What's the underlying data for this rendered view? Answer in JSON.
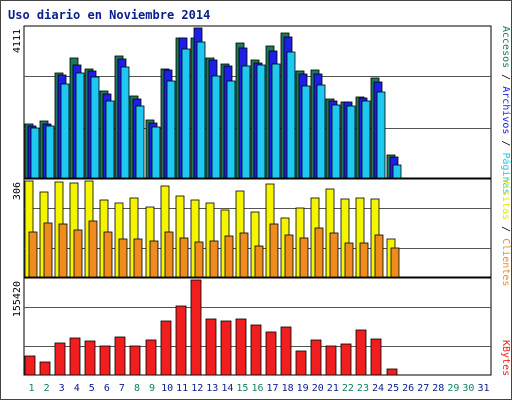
{
  "chart_data": [
    {
      "type": "bar",
      "title": "Uso diario en Noviembre 2014",
      "categories": [
        "1",
        "2",
        "3",
        "4",
        "5",
        "6",
        "7",
        "8",
        "9",
        "10",
        "11",
        "12",
        "13",
        "14",
        "15",
        "16",
        "17",
        "18",
        "19",
        "20",
        "21",
        "22",
        "23",
        "24",
        "25",
        "26",
        "27",
        "28",
        "29",
        "30",
        "31"
      ],
      "weekend_days": [
        "1",
        "2",
        "8",
        "9",
        "15",
        "16",
        "22",
        "23",
        "29",
        "30"
      ],
      "ymax_label": "4111",
      "right_labels": [
        "Páginas",
        "Archivos",
        "Accesos"
      ],
      "series": [
        {
          "name": "Accesos",
          "color": "#1c7a5a",
          "values": [
            1480,
            1560,
            2880,
            3280,
            2990,
            2380,
            3340,
            2240,
            1590,
            2980,
            3840,
            3850,
            3290,
            3120,
            3690,
            3240,
            3610,
            3980,
            2920,
            2950,
            2160,
            2090,
            2230,
            2740,
            620,
            0,
            0,
            0,
            0,
            0,
            0
          ]
        },
        {
          "name": "Archivos",
          "color": "#1e1ee6",
          "values": [
            1430,
            1480,
            2830,
            3090,
            2940,
            2300,
            3260,
            2170,
            1520,
            2950,
            3830,
            4111,
            3230,
            3070,
            3560,
            3150,
            3470,
            3870,
            2840,
            2850,
            2100,
            2070,
            2190,
            2620,
            580,
            0,
            0,
            0,
            0,
            0,
            0
          ]
        },
        {
          "name": "Páginas",
          "color": "#1ec8f0",
          "values": [
            1380,
            1430,
            2580,
            2880,
            2760,
            2120,
            3040,
            1970,
            1410,
            2650,
            3540,
            3720,
            2800,
            2650,
            3080,
            3110,
            3120,
            3460,
            2520,
            2550,
            1990,
            1980,
            2100,
            2370,
            360,
            0,
            0,
            0,
            0,
            0,
            0
          ]
        }
      ]
    },
    {
      "type": "bar",
      "categories": [
        "1",
        "2",
        "3",
        "4",
        "5",
        "6",
        "7",
        "8",
        "9",
        "10",
        "11",
        "12",
        "13",
        "14",
        "15",
        "16",
        "17",
        "18",
        "19",
        "20",
        "21",
        "22",
        "23",
        "24",
        "25",
        "26",
        "27",
        "28",
        "29",
        "30",
        "31"
      ],
      "ymax_label": "306",
      "right_labels": [
        "Clientes",
        "Visitas"
      ],
      "series": [
        {
          "name": "Visitas",
          "color": "#f5f500",
          "values": [
            306,
            270,
            303,
            300,
            306,
            245,
            237,
            253,
            223,
            291,
            259,
            245,
            237,
            215,
            274,
            208,
            296,
            187,
            219,
            253,
            280,
            250,
            251,
            250,
            120,
            0,
            0,
            0,
            0,
            0,
            0
          ]
        },
        {
          "name": "Clientes",
          "color": "#f08c1e",
          "values": [
            142,
            171,
            168,
            150,
            178,
            142,
            122,
            120,
            114,
            142,
            125,
            110,
            114,
            130,
            140,
            100,
            170,
            134,
            125,
            155,
            140,
            108,
            108,
            135,
            92,
            0,
            0,
            0,
            0,
            0,
            0
          ]
        }
      ]
    },
    {
      "type": "bar",
      "categories": [
        "1",
        "2",
        "3",
        "4",
        "5",
        "6",
        "7",
        "8",
        "9",
        "10",
        "11",
        "12",
        "13",
        "14",
        "15",
        "16",
        "17",
        "18",
        "19",
        "20",
        "21",
        "22",
        "23",
        "24",
        "25",
        "26",
        "27",
        "28",
        "29",
        "30",
        "31"
      ],
      "ymax_label": "155420",
      "right_labels": [
        "KBytes"
      ],
      "series": [
        {
          "name": "KBytes",
          "color": "#f01e1e",
          "values": [
            31000,
            22000,
            53000,
            61000,
            56000,
            48000,
            62000,
            48000,
            58000,
            88000,
            113000,
            155420,
            92000,
            88000,
            91000,
            81000,
            70000,
            79000,
            40000,
            57000,
            47000,
            51000,
            73000,
            59000,
            9000,
            0,
            0,
            0,
            0,
            0,
            0
          ]
        }
      ]
    }
  ],
  "colors": {
    "title": "#0a1e8c",
    "weekday_label": "#0a1e8c",
    "weekend_label": "#118066",
    "gridline": "#555555"
  }
}
